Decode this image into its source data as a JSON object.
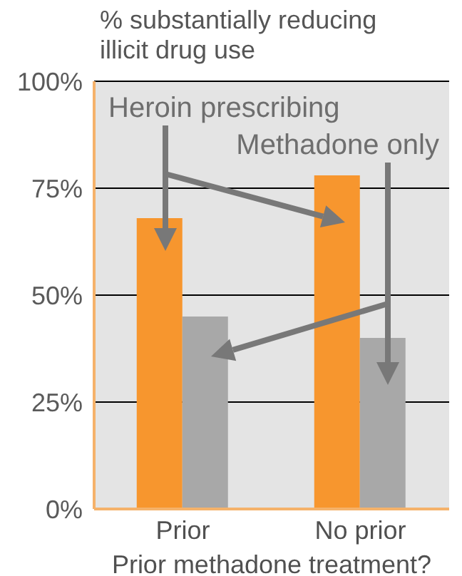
{
  "chart_data": {
    "type": "bar",
    "title": "% substantially reducing illicit drug use",
    "xlabel": "Prior methadone treatment?",
    "categories": [
      "Prior",
      "No prior"
    ],
    "series": [
      {
        "name": "Heroin prescribing",
        "color": "#f7962e",
        "values": [
          68,
          78
        ]
      },
      {
        "name": "Methadone only",
        "color": "#a8a8a8",
        "values": [
          45,
          40
        ]
      }
    ],
    "ylim": [
      0,
      100
    ],
    "yticks": [
      {
        "value": 0,
        "label": "0%"
      },
      {
        "value": 25,
        "label": "25%"
      },
      {
        "value": 50,
        "label": "50%"
      },
      {
        "value": 75,
        "label": "75%"
      },
      {
        "value": 100,
        "label": "100%"
      }
    ],
    "grid": "y"
  }
}
